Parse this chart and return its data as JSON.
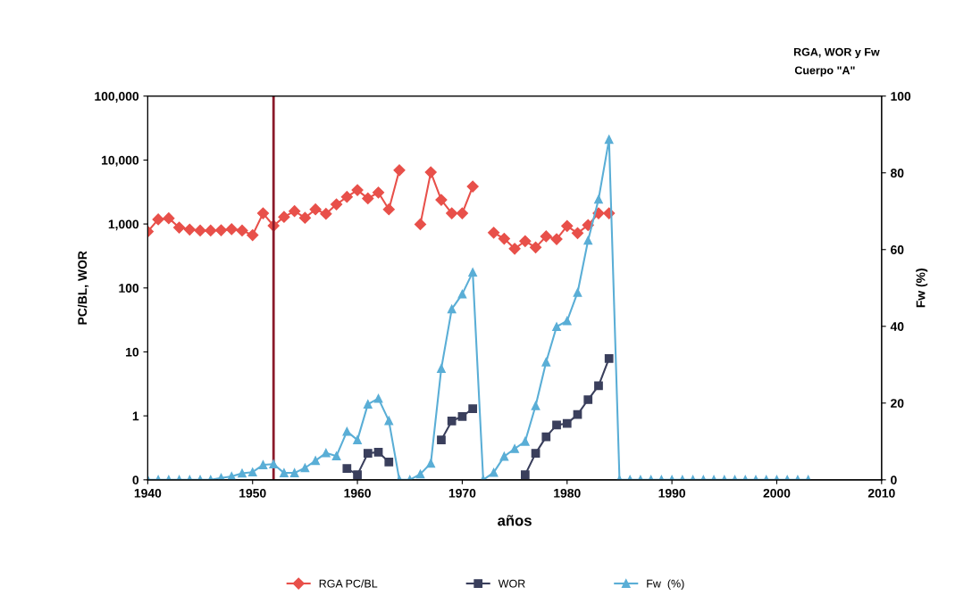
{
  "chart_data": {
    "type": "line",
    "title": "RGA, WOR y Fw",
    "subtitle": "Cuerpo \"A\"",
    "xlabel": "años",
    "ylabel": "PC/BL, WOR",
    "y2label": "Fw (%)",
    "xlim": [
      1940,
      2010
    ],
    "xticks": [
      1940,
      1950,
      1960,
      1970,
      1980,
      1990,
      2000,
      2010
    ],
    "log": "y",
    "ylim": [
      0.1,
      100000
    ],
    "yticks": [
      {
        "value": 0.1,
        "label": "0"
      },
      1,
      10,
      100,
      {
        "value": 1000,
        "label": "1,000"
      },
      {
        "value": 10000,
        "label": "10,000"
      },
      {
        "value": 100000,
        "label": "100,000"
      }
    ],
    "y2lim": [
      0,
      100
    ],
    "y2ticks": [
      0,
      20,
      40,
      60,
      80,
      100
    ],
    "grid": false,
    "legend": "bottom",
    "ref_lines": [
      {
        "axis": "x",
        "value": 1952,
        "color": "#8b1a2a"
      }
    ],
    "series": [
      {
        "name": "RGA PC/BL",
        "color": "#e8504a",
        "marker": "diamond",
        "x": [
          1940,
          1941,
          1942,
          1943,
          1944,
          1945,
          1946,
          1947,
          1948,
          1949,
          1950,
          1951,
          1952,
          1953,
          1954,
          1955,
          1956,
          1957,
          1958,
          1959,
          1960,
          1961,
          1962,
          1963,
          1964,
          1965,
          1966,
          1967,
          1968,
          1969,
          1970,
          1971,
          1972,
          1973,
          1974,
          1975,
          1976,
          1977,
          1978,
          1979,
          1980,
          1981,
          1982,
          1983,
          1984
        ],
        "values": [
          760,
          1180,
          1230,
          880,
          820,
          790,
          790,
          800,
          830,
          790,
          670,
          1470,
          940,
          1290,
          1590,
          1250,
          1690,
          1440,
          2030,
          2650,
          3390,
          2510,
          3110,
          1690,
          6940,
          null,
          990,
          6440,
          2380,
          1470,
          1470,
          3850,
          null,
          730,
          590,
          410,
          540,
          430,
          640,
          580,
          930,
          720,
          960,
          1470,
          1470
        ]
      },
      {
        "name": "WOR",
        "color": "#3a3f5c",
        "marker": "square",
        "x": [
          1959,
          1960,
          1961,
          1962,
          1963,
          1964,
          1968,
          1969,
          1970,
          1971,
          1972,
          1976,
          1977,
          1978,
          1979,
          1980,
          1981,
          1982,
          1983,
          1984
        ],
        "values": [
          0.15,
          0.12,
          0.26,
          0.27,
          0.19,
          null,
          0.42,
          0.83,
          0.98,
          1.29,
          null,
          0.12,
          0.26,
          0.47,
          0.72,
          0.76,
          1.05,
          1.79,
          2.96,
          7.9
        ]
      },
      {
        "name": "Fw  (%)",
        "color": "#5aaed6",
        "marker": "triangle",
        "axis": "y2",
        "x": [
          1940,
          1941,
          1942,
          1943,
          1944,
          1945,
          1946,
          1947,
          1948,
          1949,
          1950,
          1951,
          1952,
          1953,
          1954,
          1955,
          1956,
          1957,
          1958,
          1959,
          1960,
          1961,
          1962,
          1963,
          1964,
          1965,
          1966,
          1967,
          1968,
          1969,
          1970,
          1971,
          1972,
          1973,
          1974,
          1975,
          1976,
          1977,
          1978,
          1979,
          1980,
          1981,
          1982,
          1983,
          1984,
          1985,
          1986,
          1987,
          1988,
          1989,
          1990,
          1991,
          1992,
          1993,
          1994,
          1995,
          1996,
          1997,
          1998,
          1999,
          2000,
          2001,
          2002,
          2003
        ],
        "values": [
          0,
          0,
          0,
          0,
          0,
          0,
          0,
          0.5,
          0.9,
          1.7,
          2.0,
          3.9,
          4.1,
          1.8,
          1.8,
          3.1,
          5.0,
          7.0,
          6.2,
          12.6,
          10.4,
          19.7,
          21.2,
          15.4,
          0,
          0,
          1.5,
          4.3,
          29.0,
          44.5,
          48.4,
          54.1,
          0,
          1.9,
          6.1,
          8.1,
          10.0,
          19.3,
          30.7,
          39.9,
          41.4,
          48.8,
          62.4,
          73.1,
          88.7,
          0,
          0,
          0,
          0,
          0,
          0,
          0,
          0,
          0,
          0,
          0,
          0,
          0,
          0,
          0,
          0,
          0,
          0,
          0
        ]
      }
    ]
  }
}
